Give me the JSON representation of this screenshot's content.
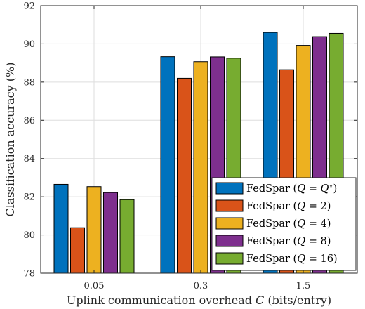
{
  "chart_data": {
    "type": "bar",
    "categories": [
      "0.05",
      "0.3",
      "1.5"
    ],
    "series": [
      {
        "name": "FedSpar (Q = Q*)",
        "color": "#0072BD",
        "values": [
          82.65,
          89.33,
          90.6
        ]
      },
      {
        "name": "FedSpar (Q = 2)",
        "color": "#D95319",
        "values": [
          80.38,
          88.2,
          88.65
        ]
      },
      {
        "name": "FedSpar (Q = 4)",
        "color": "#EDB120",
        "values": [
          82.53,
          89.07,
          89.92
        ]
      },
      {
        "name": "FedSpar (Q = 8)",
        "color": "#7E2F8E",
        "values": [
          82.22,
          89.32,
          90.38
        ]
      },
      {
        "name": "FedSpar (Q = 16)",
        "color": "#77AC30",
        "values": [
          81.85,
          89.25,
          90.55
        ]
      }
    ],
    "xlabel": "Uplink communication overhead C (bits/entry)",
    "ylabel": "Classification accuracy (%)",
    "ylim": [
      78,
      92
    ],
    "yticks": [
      "78",
      "80",
      "82",
      "84",
      "86",
      "88",
      "90",
      "92"
    ],
    "grid": true,
    "legend_position": "bottom-right"
  }
}
